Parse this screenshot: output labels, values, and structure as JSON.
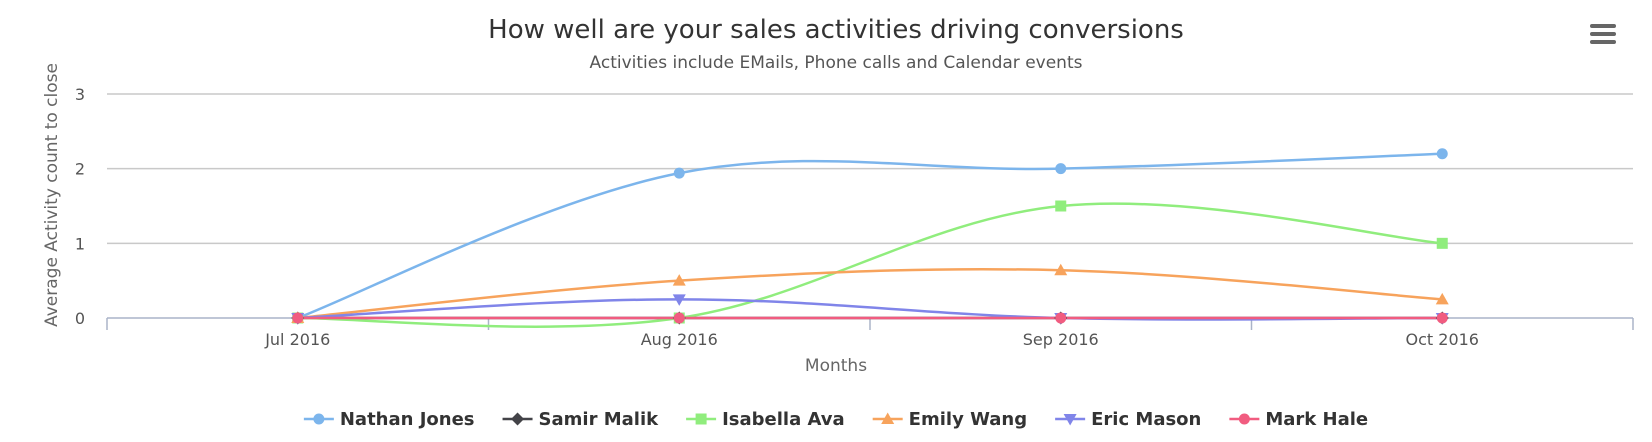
{
  "menu": {
    "icon": "hamburger-menu-icon"
  },
  "chart_data": {
    "type": "line",
    "title": "How well are your sales activities driving conversions",
    "subtitle": "Activities include EMails, Phone calls and Calendar events",
    "xlabel": "Months",
    "ylabel": "Average Activity count to close",
    "categories": [
      "Jul 2016",
      "Aug 2016",
      "Sep 2016",
      "Oct 2016"
    ],
    "ylim": [
      0,
      3
    ],
    "yticks": [
      0,
      1,
      2,
      3
    ],
    "grid": true,
    "smooth": true,
    "legend_position": "bottom-center",
    "series": [
      {
        "name": "Nathan Jones",
        "color": "#7cb5ec",
        "marker": "circle",
        "values": [
          0,
          1.94,
          2.0,
          2.2
        ]
      },
      {
        "name": "Samir Malik",
        "color": "#434348",
        "marker": "diamond",
        "values": [
          0,
          0,
          0,
          0
        ]
      },
      {
        "name": "Isabella Ava",
        "color": "#90ed7d",
        "marker": "square",
        "values": [
          0,
          0,
          1.5,
          1.0
        ]
      },
      {
        "name": "Emily Wang",
        "color": "#f7a35c",
        "marker": "triangle",
        "values": [
          0,
          0.5,
          0.64,
          0.25
        ]
      },
      {
        "name": "Eric Mason",
        "color": "#8085e9",
        "marker": "triangle-down",
        "values": [
          0,
          0.25,
          0,
          0
        ]
      },
      {
        "name": "Mark Hale",
        "color": "#f15c80",
        "marker": "circle",
        "values": [
          0,
          0,
          0,
          0
        ]
      }
    ]
  }
}
